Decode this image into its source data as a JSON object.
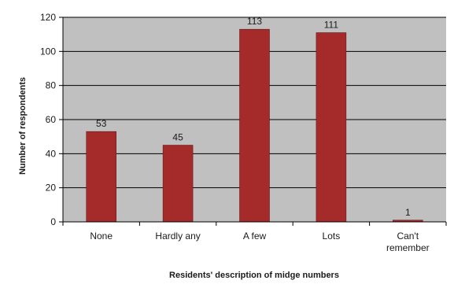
{
  "colors": {
    "plot_background": "#c0c0c0",
    "bar_fill": "#a52a2a",
    "gridline": "#000000",
    "axis": "#000000",
    "text": "#1a1a1a"
  },
  "chart_data": {
    "type": "bar",
    "title": "",
    "xlabel": "Residents' description of midge numbers",
    "ylabel": "Number of respondents",
    "categories": [
      [
        "None"
      ],
      [
        "Hardly any"
      ],
      [
        "A few"
      ],
      [
        "Lots"
      ],
      [
        "Can't",
        "remember"
      ]
    ],
    "values": [
      53,
      45,
      113,
      111,
      1
    ],
    "data_labels": [
      "53",
      "45",
      "113",
      "111",
      "1"
    ],
    "ylim": [
      0,
      120
    ],
    "yticks": [
      0,
      20,
      40,
      60,
      80,
      100,
      120
    ],
    "grid": true,
    "legend": "none"
  }
}
